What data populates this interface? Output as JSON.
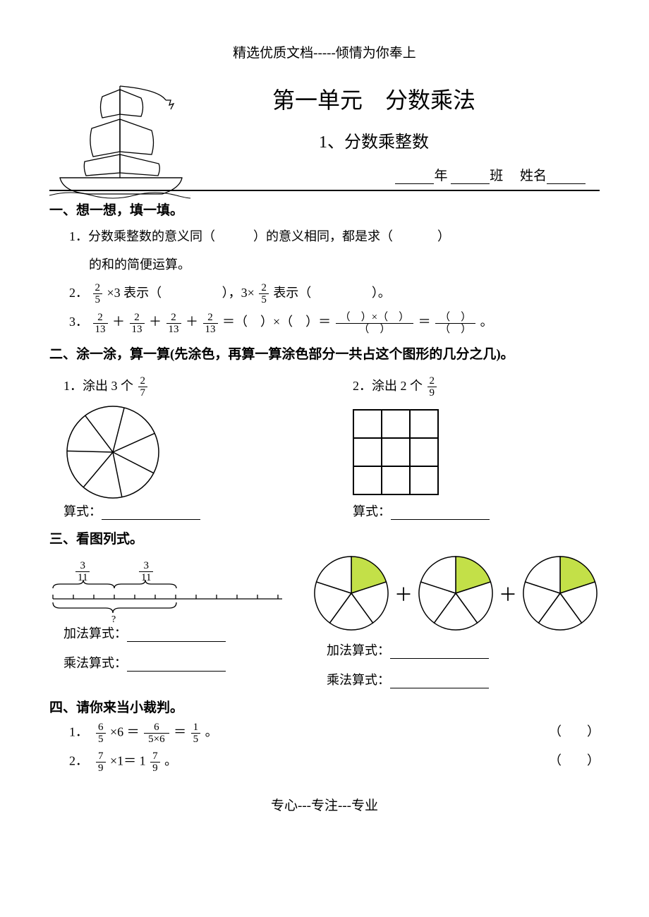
{
  "header": "精选优质文档-----倾情为你奉上",
  "unit_title": "第一单元　分数乘法",
  "sub_title": "1、分数乘整数",
  "name_line": {
    "year_label": "年",
    "class_label": "班",
    "name_label": "姓名"
  },
  "sec1": {
    "head": "一、想一想，填一填。",
    "q1_a": "1．分数乘整数的意义同（",
    "q1_b": "）的意义相同，都是求（",
    "q1_c": "）",
    "q1_d": "的和的简便运算。",
    "q2_a": "2．",
    "q2_frac": {
      "n": "2",
      "d": "5"
    },
    "q2_b": " ×3 表示（",
    "q2_c": "），3×",
    "q2_d": " 表示（",
    "q2_e": "）。",
    "q3_a": "3．",
    "q3_frac": {
      "n": "2",
      "d": "13"
    },
    "q3_b": "＝（　）×（　）＝ ",
    "q3_c": " ＝ ",
    "q3_d": " 。"
  },
  "sec2": {
    "head": "二、涂一涂，算一算(先涂色，再算一算涂色部分一共占这个图形的几分之几)。",
    "q1_a": "1．涂出 3 个",
    "q1_frac": {
      "n": "2",
      "d": "7"
    },
    "q2_a": "2．涂出 2 个",
    "q2_frac": {
      "n": "2",
      "d": "9"
    },
    "expr_label": "算式：",
    "pie7": {
      "sectors": 7,
      "radius": 65,
      "stroke": "#000",
      "fill": "#ffffff"
    }
  },
  "sec3": {
    "head": "三、看图列式。",
    "bracket_frac": {
      "n": "3",
      "d": "11"
    },
    "qmark": "?",
    "add_label": "加法算式：",
    "mul_label": "乘法算式：",
    "pie5": {
      "sectors": 5,
      "radius": 52,
      "stroke": "#000",
      "fill_highlight": "#c3e048",
      "fill_plain": "#ffffff",
      "highlighted": 1
    },
    "plus": "＋"
  },
  "sec4": {
    "head": "四、请你来当小裁判。",
    "q1_num": "1．",
    "q1_frac1": {
      "n": "6",
      "d": "5"
    },
    "q1_mid": " ×6 ＝ ",
    "q1_frac2": {
      "n": "6",
      "d": "5×6"
    },
    "q1_eq": " ＝ ",
    "q1_frac3": {
      "n": "1",
      "d": "5"
    },
    "q1_end": " 。",
    "q2_num": "2．",
    "q2_frac1": {
      "n": "7",
      "d": "9"
    },
    "q2_mid": " ×1＝ 1",
    "q2_frac2": {
      "n": "7",
      "d": "9"
    },
    "q2_end": " 。",
    "paren": "（　　）"
  },
  "footer": "专心---专注---专业",
  "colors": {
    "accent": "#c3e048"
  }
}
